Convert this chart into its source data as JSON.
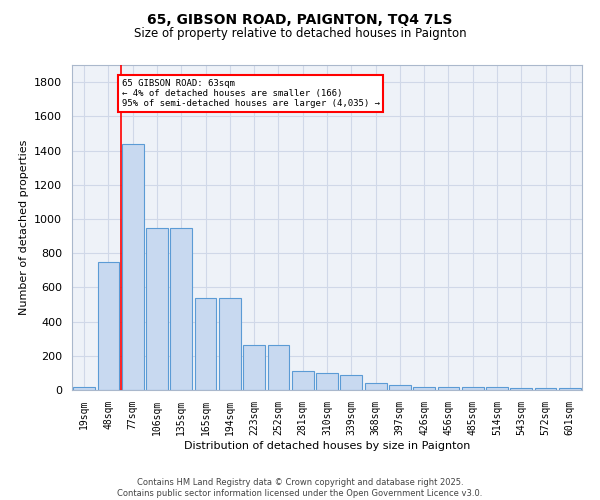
{
  "title": "65, GIBSON ROAD, PAIGNTON, TQ4 7LS",
  "subtitle": "Size of property relative to detached houses in Paignton",
  "xlabel": "Distribution of detached houses by size in Paignton",
  "ylabel": "Number of detached properties",
  "categories": [
    "19sqm",
    "48sqm",
    "77sqm",
    "106sqm",
    "135sqm",
    "165sqm",
    "194sqm",
    "223sqm",
    "252sqm",
    "281sqm",
    "310sqm",
    "339sqm",
    "368sqm",
    "397sqm",
    "426sqm",
    "456sqm",
    "485sqm",
    "514sqm",
    "543sqm",
    "572sqm",
    "601sqm"
  ],
  "values": [
    20,
    750,
    1440,
    950,
    950,
    535,
    535,
    265,
    265,
    110,
    100,
    90,
    40,
    30,
    15,
    15,
    20,
    15,
    10,
    10,
    10
  ],
  "bar_color": "#c8d9f0",
  "bar_edge_color": "#5b9bd5",
  "bar_edge_width": 0.8,
  "grid_color": "#d0d8e8",
  "bg_color": "#eef2f8",
  "annotation_text": "65 GIBSON ROAD: 63sqm\n← 4% of detached houses are smaller (166)\n95% of semi-detached houses are larger (4,035) →",
  "red_line_x": 1.5,
  "ylim": [
    0,
    1900
  ],
  "yticks": [
    0,
    200,
    400,
    600,
    800,
    1000,
    1200,
    1400,
    1600,
    1800
  ],
  "footer": "Contains HM Land Registry data © Crown copyright and database right 2025.\nContains public sector information licensed under the Open Government Licence v3.0."
}
